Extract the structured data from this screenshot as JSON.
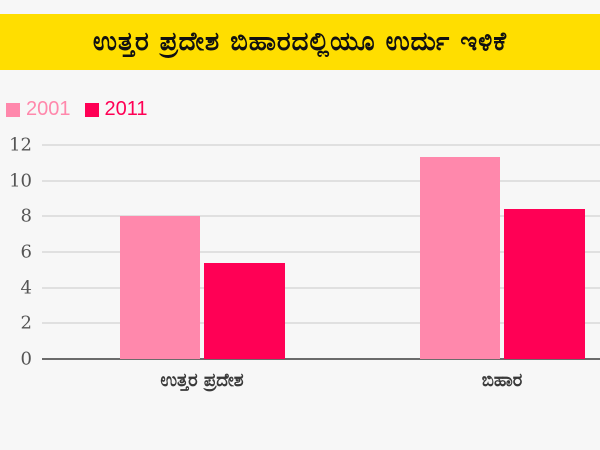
{
  "header": {
    "title": "ಉತ್ತರ ಪ್ರದೇಶ ಬಿಹಾರದಲ್ಲಿಯೂ ಉರ್ದು ಇಳಿಕೆ",
    "background_color": "#ffde00"
  },
  "legend": [
    {
      "label": "2001",
      "color": "#ff88ac"
    },
    {
      "label": "2011",
      "color": "#ff0055"
    }
  ],
  "y_axis": {
    "ticks": [
      "12",
      "10",
      "8",
      "6",
      "4",
      "2",
      "0"
    ]
  },
  "x_axis": {
    "labels": [
      "ಉತ್ತರ ಪ್ರದೇಶ",
      "ಬಿಹಾರ"
    ]
  },
  "chart_data": {
    "type": "bar",
    "title": "ಉತ್ತರ ಪ್ರದೇಶ ಬಿಹಾರದಲ್ಲಿಯೂ ಉರ್ದು ಇಳಿಕೆ",
    "categories": [
      "ಉತ್ತರ ಪ್ರದೇಶ",
      "ಬಿಹಾರ"
    ],
    "series": [
      {
        "name": "2001",
        "color": "#ff88ac",
        "values": [
          8.0,
          11.3
        ]
      },
      {
        "name": "2011",
        "color": "#ff0055",
        "values": [
          5.4,
          8.4
        ]
      }
    ],
    "xlabel": "",
    "ylabel": "",
    "ylim": [
      0,
      12
    ],
    "yticks": [
      0,
      2,
      4,
      6,
      8,
      10,
      12
    ],
    "grid": true,
    "legend_position": "top-left"
  }
}
